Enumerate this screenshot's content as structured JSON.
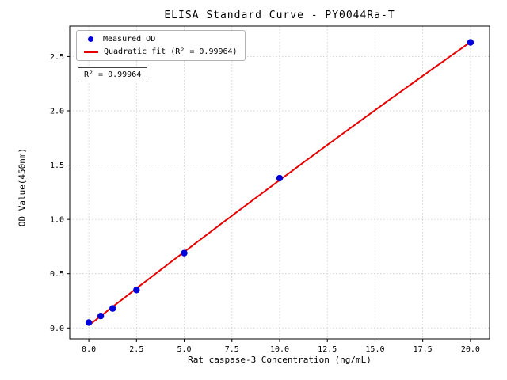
{
  "chart_data": {
    "type": "scatter",
    "title": "ELISA Standard Curve - PY0044Ra-T",
    "xlabel": "Rat caspase-3 Concentration (ng/mL)",
    "ylabel": "OD Value(450nm)",
    "xlim": [
      -1,
      21
    ],
    "ylim": [
      -0.1,
      2.78
    ],
    "xticks": [
      0.0,
      2.5,
      5.0,
      7.5,
      10.0,
      12.5,
      15.0,
      17.5,
      20.0
    ],
    "xtick_labels": [
      "0.0",
      "2.5",
      "5.0",
      "7.5",
      "10.0",
      "12.5",
      "15.0",
      "17.5",
      "20.0"
    ],
    "yticks": [
      0.0,
      0.5,
      1.0,
      1.5,
      2.0,
      2.5
    ],
    "ytick_labels": [
      "0.0",
      "0.5",
      "1.0",
      "1.5",
      "2.0",
      "2.5"
    ],
    "grid": true,
    "grid_style": "dotted",
    "legend_position": "upper-left",
    "series": [
      {
        "name": "Measured OD",
        "type": "scatter",
        "marker": "dot",
        "color": "#0000dc",
        "x": [
          0,
          0.625,
          1.25,
          2.5,
          5,
          10,
          20
        ],
        "y": [
          0.05,
          0.11,
          0.18,
          0.35,
          0.69,
          1.38,
          2.63
        ]
      },
      {
        "name": "Quadratic fit (R² = 0.99964)",
        "type": "quadratic-fit-line",
        "color": "#e60000"
      }
    ],
    "annotation": "R² = 0.99964",
    "r_squared": 0.99964,
    "colors": {
      "point": "#0000dc",
      "fit_line": "#e60000",
      "grid": "#c8c8c8",
      "axis": "#000000",
      "background": "#ffffff"
    }
  }
}
